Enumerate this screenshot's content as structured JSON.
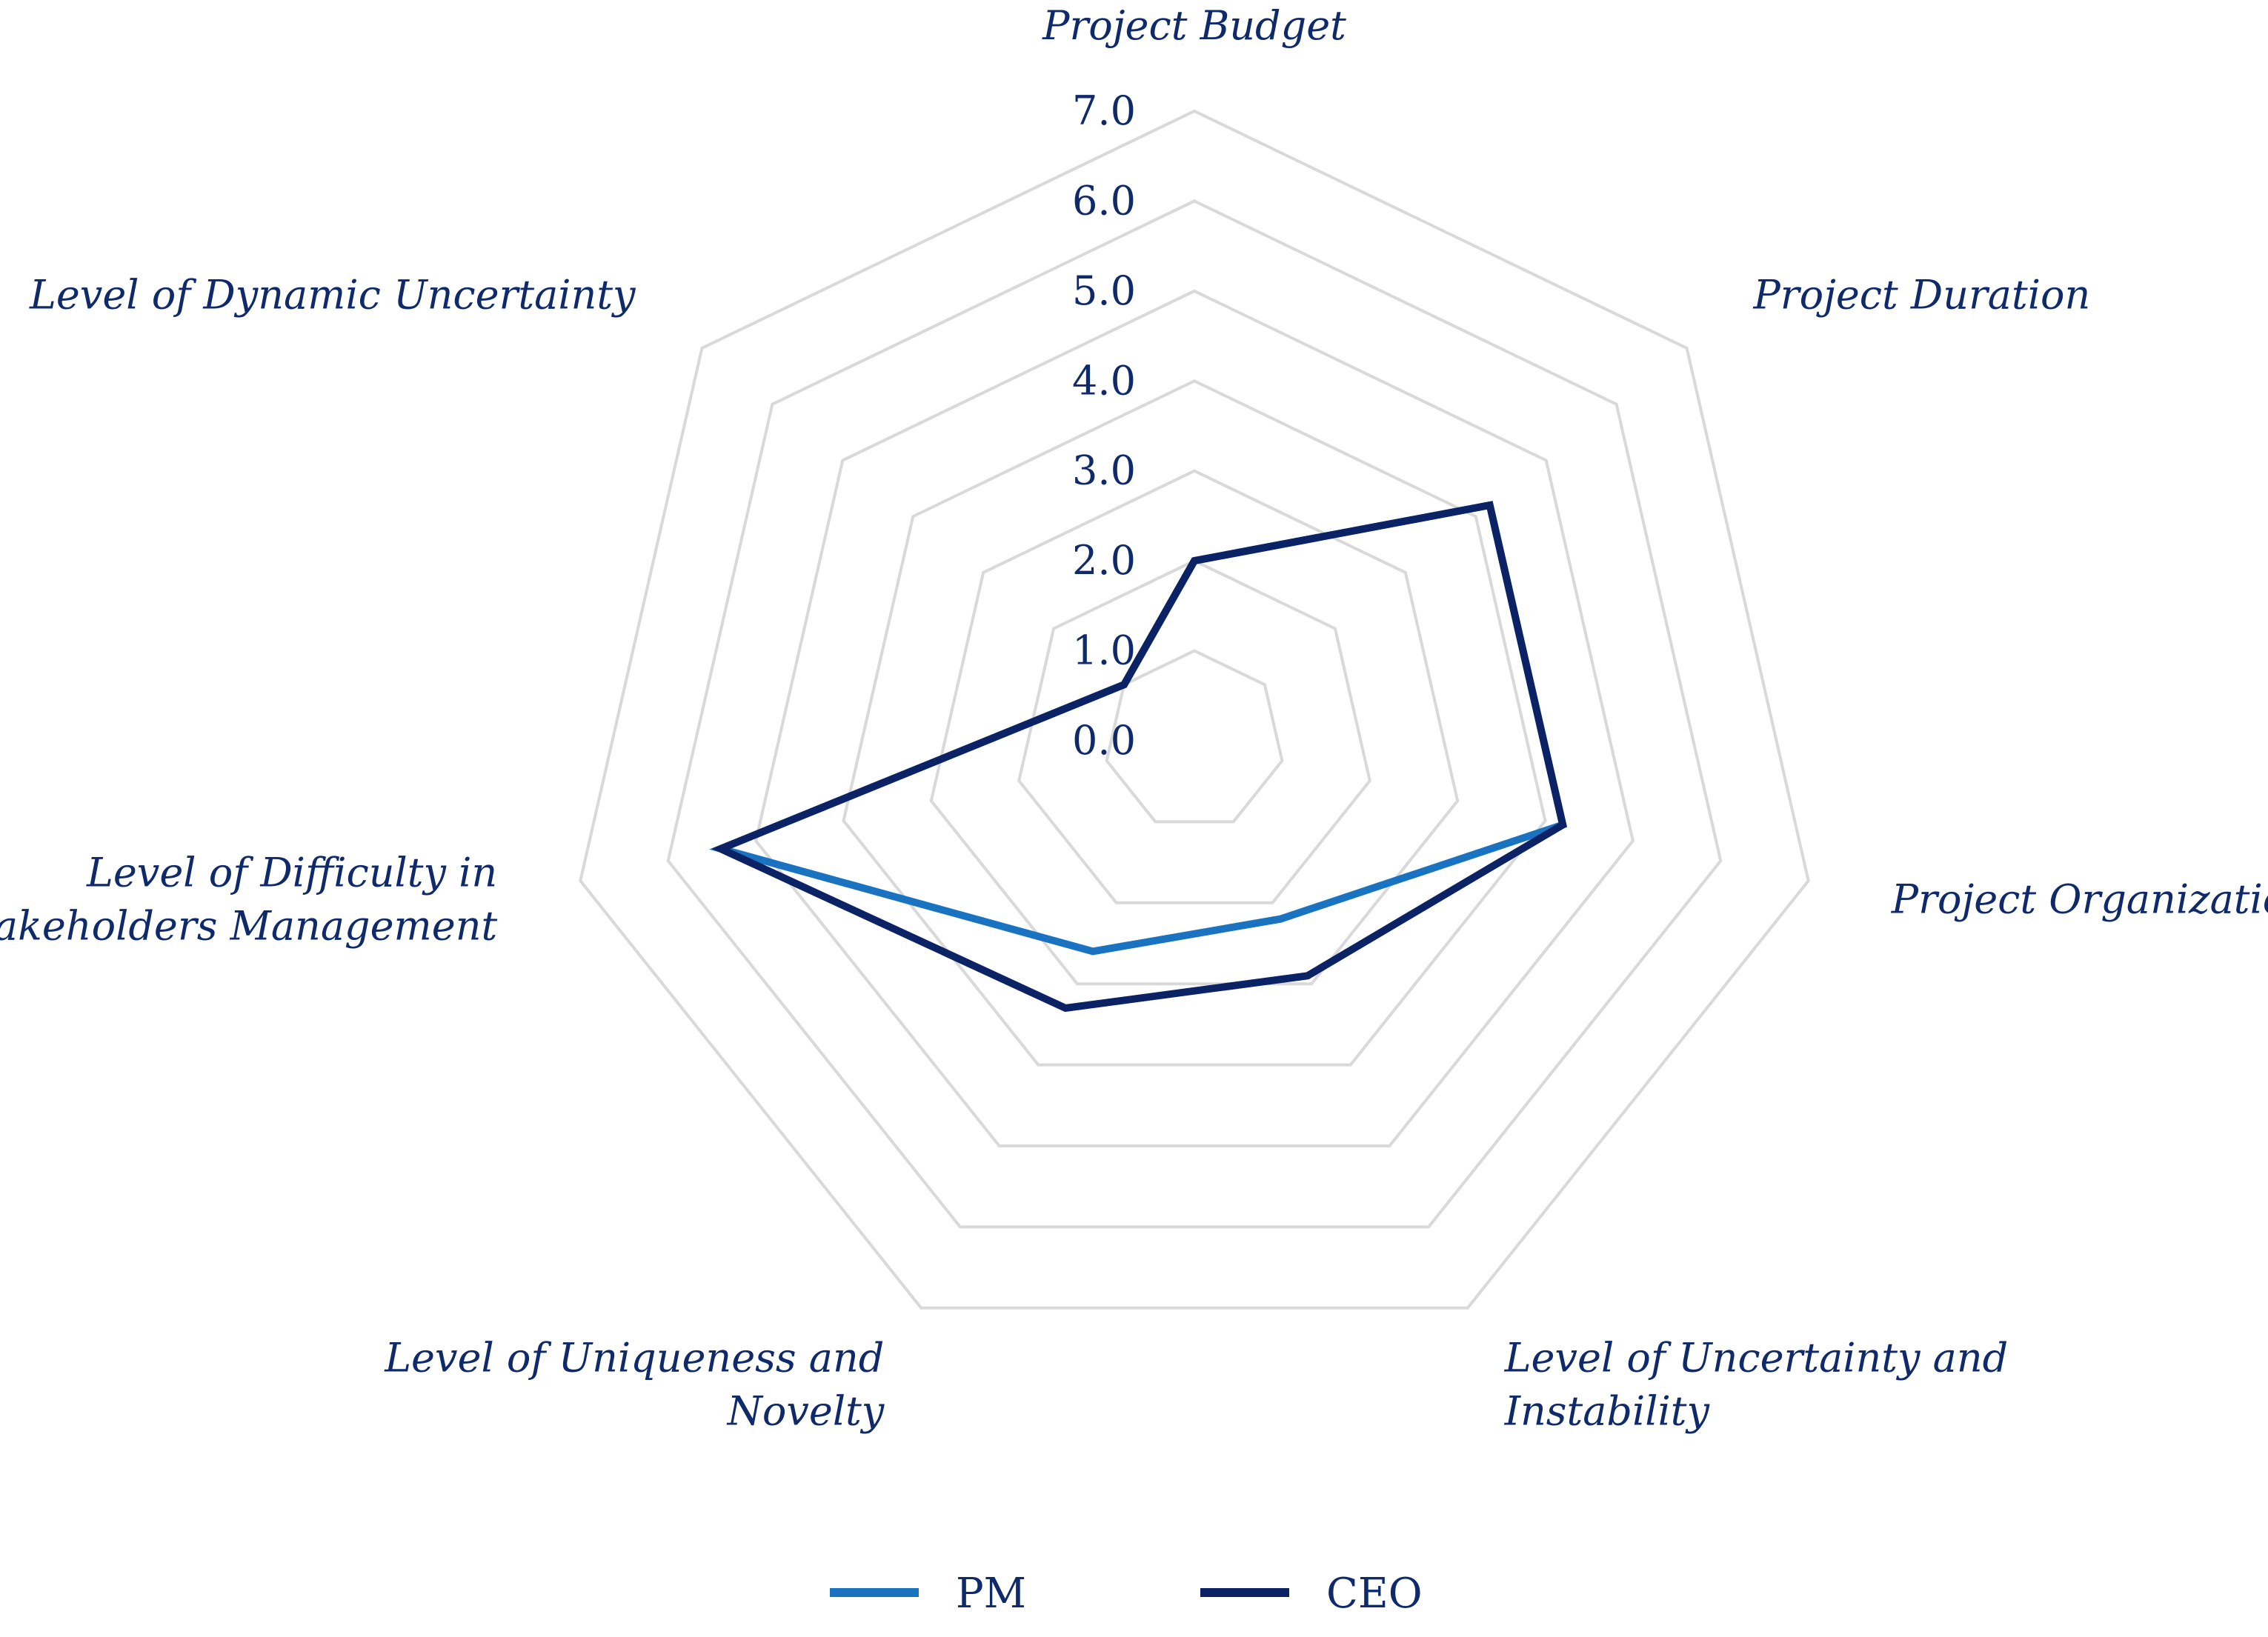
{
  "chart_data": {
    "type": "radar",
    "categories": [
      "Project Budget",
      "Project Duration",
      "Project Organization",
      "Level of Uncertainty and Instability",
      "Level of Uniqueness and Novelty",
      "Level of Difficulty in Stakeholders Management",
      "Level of Dynamic Uncertainty"
    ],
    "category_lines": [
      [
        "Project Budget"
      ],
      [
        "Project Duration"
      ],
      [
        "Project Organization"
      ],
      [
        "Level of Uncertainty and",
        "Instability"
      ],
      [
        "Level of Uniqueness and",
        "Novelty"
      ],
      [
        "Level of Difficulty in",
        "Stakeholders Management"
      ],
      [
        "Level of Dynamic Uncertainty"
      ]
    ],
    "ticks": [
      "0.0",
      "1.0",
      "2.0",
      "3.0",
      "4.0",
      "5.0",
      "6.0",
      "7.0"
    ],
    "rlim": [
      0,
      7
    ],
    "grid": true,
    "legend_position": "bottom",
    "series": [
      {
        "name": "PM",
        "color": "#1a73c0",
        "values": [
          2.0,
          4.2,
          4.2,
          2.2,
          2.6,
          5.4,
          1.0
        ]
      },
      {
        "name": "CEO",
        "color": "#0b2265",
        "values": [
          2.0,
          4.2,
          4.2,
          2.9,
          3.3,
          5.4,
          1.0
        ]
      }
    ]
  }
}
